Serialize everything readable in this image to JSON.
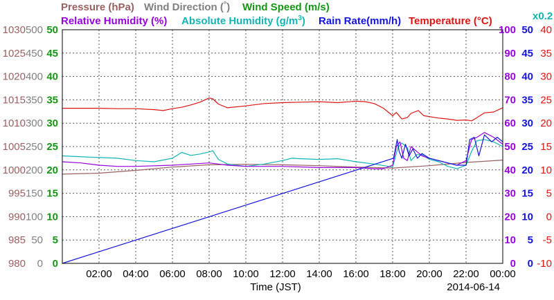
{
  "chart_data": {
    "type": "line",
    "date": "2014-06-14",
    "xlabel": "Time (JST)",
    "x_ticks": [
      "02:00",
      "04:00",
      "06:00",
      "08:00",
      "10:00",
      "12:00",
      "14:00",
      "16:00",
      "18:00",
      "20:00",
      "22:00",
      "00:00"
    ],
    "x_range_hours": [
      0,
      24
    ],
    "grid": true,
    "legend": {
      "pressure": "Pressure (hPa)",
      "wind_direction_prefix": "Wind Direction (",
      "wind_direction_unit": "°",
      "wind_direction_suffix": ")",
      "wind_speed": "Wind Speed (m/s)",
      "relative_humidity": "Relative Humidity (%)",
      "absolute_humidity_prefix": "Absolute Humidity (g/m",
      "absolute_humidity_sup": "3",
      "absolute_humidity_suffix": ")",
      "rain_rate": "Rain Rate(mm/h)",
      "temperature_prefix": "Temperature (",
      "temperature_unit": "°C",
      "temperature_suffix": ")",
      "scale_note": "x0.2"
    },
    "colors": {
      "pressure": "#9a6060",
      "wind_direction": "#808080",
      "wind_speed": "#149614",
      "relative_humidity": "#9600dc",
      "absolute_humidity": "#14b4b4",
      "rain_rate": "#1414dc",
      "temperature": "#dc1414"
    },
    "axes": {
      "pressure": {
        "ylim": [
          980,
          1030
        ],
        "ticks": [
          "980",
          "985",
          "990",
          "995",
          "1000",
          "1005",
          "1010",
          "1015",
          "1020",
          "1025",
          "1030"
        ]
      },
      "wind_direction": {
        "ylim": [
          0,
          500
        ],
        "ticks": [
          "0",
          "50",
          "100",
          "150",
          "200",
          "250",
          "300",
          "350",
          "400",
          "450",
          "500"
        ]
      },
      "wind_speed": {
        "ylim": [
          0,
          50
        ],
        "ticks": [
          "0",
          "5",
          "10",
          "15",
          "20",
          "25",
          "30",
          "35",
          "40",
          "45",
          "50"
        ]
      },
      "relative_humidity": {
        "ylim": [
          0,
          100
        ],
        "ticks": [
          "0",
          "10",
          "20",
          "30",
          "40",
          "50",
          "60",
          "70",
          "80",
          "90",
          "100"
        ]
      },
      "rain_rate": {
        "ylim": [
          0,
          50
        ],
        "ticks": [
          "0",
          "5",
          "10",
          "15",
          "20",
          "25",
          "30",
          "35",
          "40",
          "45",
          "50"
        ]
      },
      "temperature": {
        "ylim": [
          -10,
          40
        ],
        "ticks": [
          "-10",
          "-5",
          "0",
          "5",
          "10",
          "15",
          "20",
          "25",
          "30",
          "35",
          "40"
        ]
      }
    },
    "series": [
      {
        "key": "temperature",
        "name": "Temperature (°C)",
        "axis": "temperature",
        "x": [
          0,
          1,
          2,
          3,
          4,
          5,
          5.5,
          6,
          6.5,
          7,
          7.5,
          8,
          8.2,
          8.5,
          9,
          10,
          11,
          12,
          13,
          14,
          15,
          16,
          16.5,
          17,
          17.5,
          18,
          18.2,
          18.5,
          18.8,
          19,
          19.4,
          19.7,
          20,
          20.5,
          21,
          21.5,
          22,
          22.3,
          22.6,
          23,
          23.5,
          24
        ],
        "y": [
          23.2,
          23.2,
          23.2,
          23.1,
          23.1,
          22.9,
          22.7,
          23.1,
          23.4,
          23.9,
          24.5,
          25.4,
          25.2,
          24.1,
          23.3,
          23.7,
          24.2,
          24.4,
          24.5,
          24.6,
          24.4,
          24.7,
          24.6,
          24.2,
          23.2,
          21.6,
          22.3,
          20.9,
          21.2,
          22.1,
          22.7,
          21.6,
          21.4,
          21.1,
          20.9,
          20.6,
          20.7,
          20.5,
          21.2,
          22.2,
          22.4,
          23.3
        ]
      },
      {
        "key": "pressure",
        "name": "Pressure (hPa)",
        "axis": "pressure",
        "x": [
          0,
          2,
          4,
          6,
          8,
          10,
          12,
          14,
          16,
          18,
          20,
          22,
          24
        ],
        "y": [
          999.1,
          999.3,
          999.9,
          1000.6,
          1001.1,
          1001.2,
          1001.1,
          1000.9,
          1000.6,
          1000.4,
          1000.9,
          1001.6,
          1002.1
        ]
      },
      {
        "key": "absolute_humidity",
        "name": "Absolute Humidity (g/m3) x0.2",
        "axis": "relative_humidity",
        "x": [
          0,
          2,
          3,
          4,
          5,
          6,
          6.5,
          7,
          7.5,
          8,
          8.2,
          8.5,
          9,
          10,
          11,
          12,
          12.5,
          13,
          14,
          15,
          16,
          17,
          18,
          18.3,
          18.5,
          18.8,
          19,
          19.3,
          19.6,
          20,
          20.5,
          21,
          21.5,
          22,
          22.3,
          22.6,
          23,
          23.5,
          24
        ],
        "y": [
          46,
          45.3,
          45,
          44,
          43.5,
          45,
          47.5,
          46.2,
          46.8,
          47.7,
          48.2,
          44.5,
          42.5,
          41.5,
          42.5,
          44,
          45,
          44.8,
          44.5,
          44.8,
          43.5,
          42.5,
          41.2,
          50,
          51.5,
          49.5,
          44,
          46.5,
          46.5,
          44.5,
          43.5,
          41.5,
          40.5,
          42,
          48,
          52.5,
          53,
          52,
          50
        ]
      },
      {
        "key": "relative_humidity",
        "name": "Relative Humidity (%)",
        "axis": "relative_humidity",
        "x": [
          0,
          1,
          2,
          3,
          4,
          6,
          7,
          8,
          8.5,
          9,
          10,
          12,
          14,
          16,
          17,
          17.5,
          18,
          18.2,
          18.4,
          18.6,
          18.8,
          19,
          19.3,
          19.6,
          20,
          20.5,
          21,
          21.5,
          22,
          22.3,
          22.6,
          23,
          23.5,
          24
        ],
        "y": [
          43.5,
          43,
          42,
          41.5,
          41.5,
          42,
          42.5,
          43,
          42.5,
          42,
          41.5,
          41.5,
          41,
          41,
          40.5,
          40.5,
          42,
          50,
          52,
          45,
          44,
          50,
          48,
          46,
          45,
          44,
          43,
          42,
          44,
          53,
          54,
          56,
          54,
          51
        ]
      },
      {
        "key": "rain_rate",
        "name": "Rain Rate(mm/h)",
        "axis": "rain_rate",
        "x": [
          0,
          18.05,
          18.15,
          18.25,
          18.35,
          18.5,
          18.7,
          18.9,
          19.1,
          19.35,
          19.6,
          20,
          20.5,
          21,
          21.5,
          22,
          22.2,
          22.45,
          22.7,
          23,
          23.4,
          23.7,
          24
        ],
        "y": [
          0,
          22.5,
          24.5,
          26.5,
          24,
          22.5,
          25.5,
          23,
          24.5,
          22.5,
          23.5,
          22.5,
          22,
          21.5,
          21,
          21,
          26.5,
          27,
          23,
          27.5,
          26,
          27,
          26
        ]
      }
    ]
  }
}
